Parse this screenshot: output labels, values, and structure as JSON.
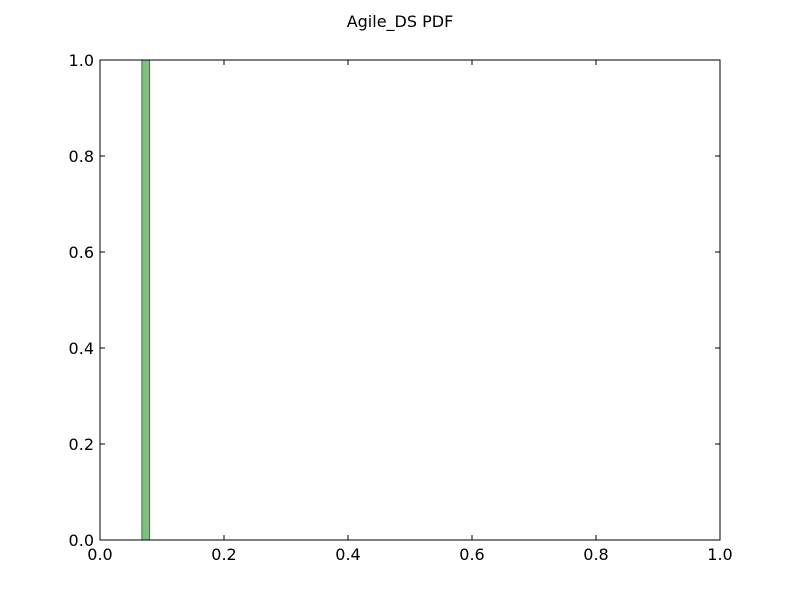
{
  "chart_data": {
    "type": "bar",
    "title": "Agile_DS PDF",
    "xlabel": "",
    "ylabel": "",
    "xlim": [
      0,
      1
    ],
    "ylim": [
      0,
      1
    ],
    "x_ticks": [
      "0.0",
      "0.2",
      "0.4",
      "0.6",
      "0.8",
      "1.0"
    ],
    "y_ticks": [
      "0.0",
      "0.2",
      "0.4",
      "0.6",
      "0.8",
      "1.0"
    ],
    "grid": false,
    "legend": "none",
    "bin_width": 0.0125,
    "bars": [
      {
        "x_start": 0.0675,
        "x_end": 0.08,
        "value": 1.0
      }
    ],
    "bar_color": "#80bf80",
    "bar_edge_color": "#3a7a3a"
  }
}
